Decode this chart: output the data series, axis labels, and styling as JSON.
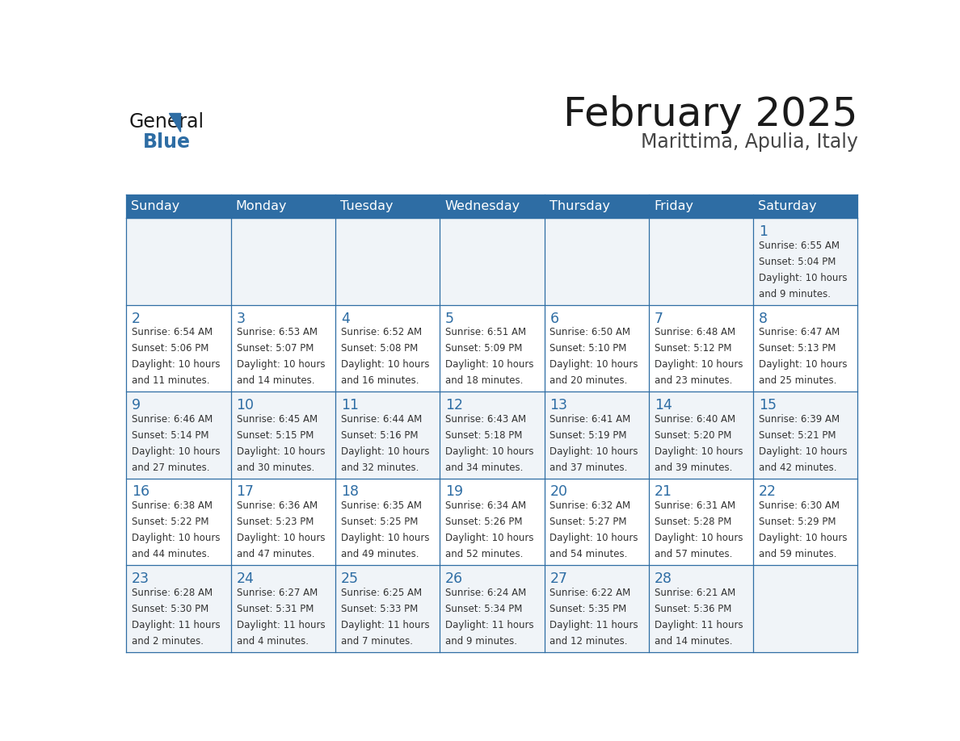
{
  "title": "February 2025",
  "subtitle": "Marittima, Apulia, Italy",
  "header_bg": "#2e6da4",
  "header_text_color": "#ffffff",
  "cell_bg_even": "#f0f4f8",
  "cell_bg_odd": "#ffffff",
  "border_color": "#2e6da4",
  "day_headers": [
    "Sunday",
    "Monday",
    "Tuesday",
    "Wednesday",
    "Thursday",
    "Friday",
    "Saturday"
  ],
  "days": [
    {
      "date": 1,
      "col": 6,
      "row": 0,
      "sunrise": "6:55 AM",
      "sunset": "5:04 PM",
      "daylight_line1": "Daylight: 10 hours",
      "daylight_line2": "and 9 minutes."
    },
    {
      "date": 2,
      "col": 0,
      "row": 1,
      "sunrise": "6:54 AM",
      "sunset": "5:06 PM",
      "daylight_line1": "Daylight: 10 hours",
      "daylight_line2": "and 11 minutes."
    },
    {
      "date": 3,
      "col": 1,
      "row": 1,
      "sunrise": "6:53 AM",
      "sunset": "5:07 PM",
      "daylight_line1": "Daylight: 10 hours",
      "daylight_line2": "and 14 minutes."
    },
    {
      "date": 4,
      "col": 2,
      "row": 1,
      "sunrise": "6:52 AM",
      "sunset": "5:08 PM",
      "daylight_line1": "Daylight: 10 hours",
      "daylight_line2": "and 16 minutes."
    },
    {
      "date": 5,
      "col": 3,
      "row": 1,
      "sunrise": "6:51 AM",
      "sunset": "5:09 PM",
      "daylight_line1": "Daylight: 10 hours",
      "daylight_line2": "and 18 minutes."
    },
    {
      "date": 6,
      "col": 4,
      "row": 1,
      "sunrise": "6:50 AM",
      "sunset": "5:10 PM",
      "daylight_line1": "Daylight: 10 hours",
      "daylight_line2": "and 20 minutes."
    },
    {
      "date": 7,
      "col": 5,
      "row": 1,
      "sunrise": "6:48 AM",
      "sunset": "5:12 PM",
      "daylight_line1": "Daylight: 10 hours",
      "daylight_line2": "and 23 minutes."
    },
    {
      "date": 8,
      "col": 6,
      "row": 1,
      "sunrise": "6:47 AM",
      "sunset": "5:13 PM",
      "daylight_line1": "Daylight: 10 hours",
      "daylight_line2": "and 25 minutes."
    },
    {
      "date": 9,
      "col": 0,
      "row": 2,
      "sunrise": "6:46 AM",
      "sunset": "5:14 PM",
      "daylight_line1": "Daylight: 10 hours",
      "daylight_line2": "and 27 minutes."
    },
    {
      "date": 10,
      "col": 1,
      "row": 2,
      "sunrise": "6:45 AM",
      "sunset": "5:15 PM",
      "daylight_line1": "Daylight: 10 hours",
      "daylight_line2": "and 30 minutes."
    },
    {
      "date": 11,
      "col": 2,
      "row": 2,
      "sunrise": "6:44 AM",
      "sunset": "5:16 PM",
      "daylight_line1": "Daylight: 10 hours",
      "daylight_line2": "and 32 minutes."
    },
    {
      "date": 12,
      "col": 3,
      "row": 2,
      "sunrise": "6:43 AM",
      "sunset": "5:18 PM",
      "daylight_line1": "Daylight: 10 hours",
      "daylight_line2": "and 34 minutes."
    },
    {
      "date": 13,
      "col": 4,
      "row": 2,
      "sunrise": "6:41 AM",
      "sunset": "5:19 PM",
      "daylight_line1": "Daylight: 10 hours",
      "daylight_line2": "and 37 minutes."
    },
    {
      "date": 14,
      "col": 5,
      "row": 2,
      "sunrise": "6:40 AM",
      "sunset": "5:20 PM",
      "daylight_line1": "Daylight: 10 hours",
      "daylight_line2": "and 39 minutes."
    },
    {
      "date": 15,
      "col": 6,
      "row": 2,
      "sunrise": "6:39 AM",
      "sunset": "5:21 PM",
      "daylight_line1": "Daylight: 10 hours",
      "daylight_line2": "and 42 minutes."
    },
    {
      "date": 16,
      "col": 0,
      "row": 3,
      "sunrise": "6:38 AM",
      "sunset": "5:22 PM",
      "daylight_line1": "Daylight: 10 hours",
      "daylight_line2": "and 44 minutes."
    },
    {
      "date": 17,
      "col": 1,
      "row": 3,
      "sunrise": "6:36 AM",
      "sunset": "5:23 PM",
      "daylight_line1": "Daylight: 10 hours",
      "daylight_line2": "and 47 minutes."
    },
    {
      "date": 18,
      "col": 2,
      "row": 3,
      "sunrise": "6:35 AM",
      "sunset": "5:25 PM",
      "daylight_line1": "Daylight: 10 hours",
      "daylight_line2": "and 49 minutes."
    },
    {
      "date": 19,
      "col": 3,
      "row": 3,
      "sunrise": "6:34 AM",
      "sunset": "5:26 PM",
      "daylight_line1": "Daylight: 10 hours",
      "daylight_line2": "and 52 minutes."
    },
    {
      "date": 20,
      "col": 4,
      "row": 3,
      "sunrise": "6:32 AM",
      "sunset": "5:27 PM",
      "daylight_line1": "Daylight: 10 hours",
      "daylight_line2": "and 54 minutes."
    },
    {
      "date": 21,
      "col": 5,
      "row": 3,
      "sunrise": "6:31 AM",
      "sunset": "5:28 PM",
      "daylight_line1": "Daylight: 10 hours",
      "daylight_line2": "and 57 minutes."
    },
    {
      "date": 22,
      "col": 6,
      "row": 3,
      "sunrise": "6:30 AM",
      "sunset": "5:29 PM",
      "daylight_line1": "Daylight: 10 hours",
      "daylight_line2": "and 59 minutes."
    },
    {
      "date": 23,
      "col": 0,
      "row": 4,
      "sunrise": "6:28 AM",
      "sunset": "5:30 PM",
      "daylight_line1": "Daylight: 11 hours",
      "daylight_line2": "and 2 minutes."
    },
    {
      "date": 24,
      "col": 1,
      "row": 4,
      "sunrise": "6:27 AM",
      "sunset": "5:31 PM",
      "daylight_line1": "Daylight: 11 hours",
      "daylight_line2": "and 4 minutes."
    },
    {
      "date": 25,
      "col": 2,
      "row": 4,
      "sunrise": "6:25 AM",
      "sunset": "5:33 PM",
      "daylight_line1": "Daylight: 11 hours",
      "daylight_line2": "and 7 minutes."
    },
    {
      "date": 26,
      "col": 3,
      "row": 4,
      "sunrise": "6:24 AM",
      "sunset": "5:34 PM",
      "daylight_line1": "Daylight: 11 hours",
      "daylight_line2": "and 9 minutes."
    },
    {
      "date": 27,
      "col": 4,
      "row": 4,
      "sunrise": "6:22 AM",
      "sunset": "5:35 PM",
      "daylight_line1": "Daylight: 11 hours",
      "daylight_line2": "and 12 minutes."
    },
    {
      "date": 28,
      "col": 5,
      "row": 4,
      "sunrise": "6:21 AM",
      "sunset": "5:36 PM",
      "daylight_line1": "Daylight: 11 hours",
      "daylight_line2": "and 14 minutes."
    }
  ],
  "num_rows": 5,
  "num_cols": 7,
  "logo_text_general": "General",
  "logo_text_blue": "Blue",
  "logo_color_general": "#1a1a1a",
  "logo_color_blue": "#2e6da4",
  "logo_triangle_color": "#2e6da4",
  "title_color": "#1a1a1a",
  "subtitle_color": "#444444",
  "date_number_color": "#2e6da4",
  "cell_text_color": "#333333",
  "fig_width": 11.88,
  "fig_height": 9.18,
  "dpi": 100
}
